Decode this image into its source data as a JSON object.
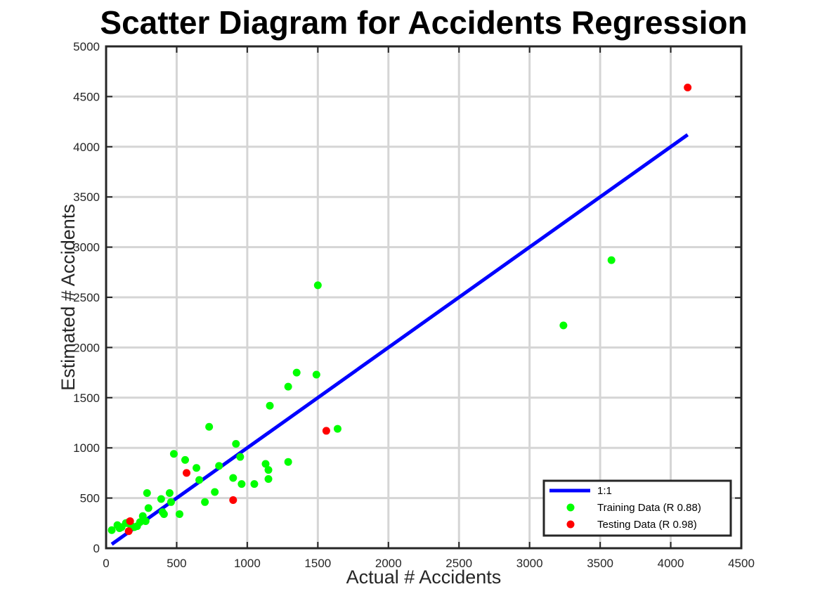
{
  "chart_data": {
    "type": "scatter",
    "title": "Scatter Diagram for Accidents Regression",
    "xlabel": "Actual # Accidents",
    "ylabel": "Estimated # Accidents",
    "xlim": [
      0,
      4500
    ],
    "ylim": [
      0,
      5000
    ],
    "xticks": [
      "0",
      "500",
      "1000",
      "1500",
      "2000",
      "2500",
      "3000",
      "3500",
      "4000",
      "4500"
    ],
    "yticks": [
      "0",
      "500",
      "1000",
      "1500",
      "2000",
      "2500",
      "3000",
      "3500",
      "4000",
      "4500",
      "5000"
    ],
    "grid": true,
    "legend_position": "bottom-right",
    "series": [
      {
        "name": "1:1",
        "kind": "line",
        "color": "#0000ff",
        "x": [
          40,
          4120
        ],
        "y": [
          40,
          4120
        ]
      },
      {
        "name": "Training Data (R 0.88)",
        "kind": "scatter",
        "color": "#00ff00",
        "x": [
          40,
          80,
          95,
          110,
          140,
          160,
          175,
          200,
          220,
          240,
          260,
          280,
          290,
          300,
          390,
          400,
          410,
          450,
          460,
          480,
          520,
          560,
          640,
          660,
          700,
          730,
          770,
          800,
          900,
          920,
          950,
          960,
          1050,
          1130,
          1150,
          1150,
          1160,
          1290,
          1290,
          1350,
          1490,
          1500,
          1640,
          3240,
          3580
        ],
        "y": [
          180,
          230,
          200,
          210,
          250,
          260,
          230,
          210,
          220,
          260,
          320,
          270,
          550,
          400,
          490,
          360,
          340,
          550,
          460,
          940,
          340,
          880,
          800,
          680,
          460,
          1210,
          560,
          820,
          700,
          1040,
          910,
          640,
          640,
          840,
          780,
          690,
          1420,
          860,
          1610,
          1750,
          1730,
          2620,
          1190,
          2220,
          2870
        ]
      },
      {
        "name": "Testing Data (R 0.98)",
        "kind": "scatter",
        "color": "#ff0000",
        "x": [
          160,
          170,
          570,
          900,
          1560,
          4120
        ],
        "y": [
          170,
          270,
          750,
          480,
          1170,
          4590
        ]
      }
    ]
  }
}
